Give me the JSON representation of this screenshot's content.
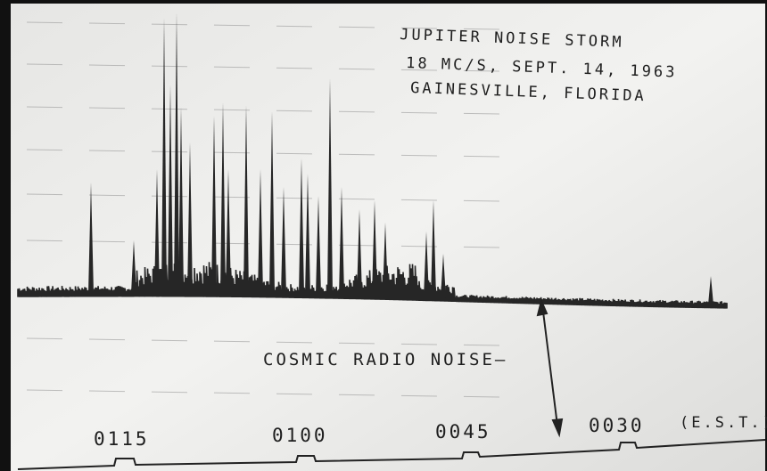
{
  "title": {
    "lines": [
      "JUPITER NOISE STORM",
      "18 MC/S, SEPT. 14, 1963",
      "GAINESVILLE, FLORIDA"
    ]
  },
  "annotation": "COSMIC RADIO NOISE—",
  "time_marks": [
    "0115",
    "0100",
    "0045",
    "0030"
  ],
  "time_unit": "(E.S.T.)"
}
